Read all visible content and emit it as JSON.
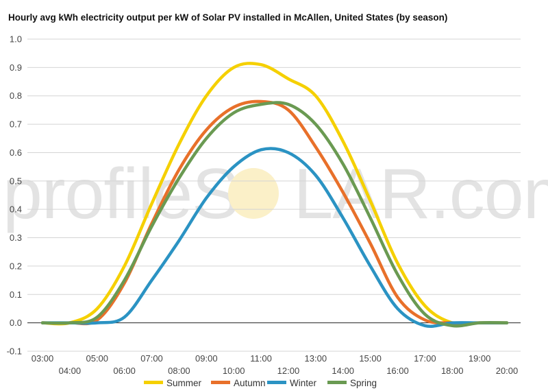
{
  "watermark": {
    "pre": "profileS",
    "post": "LAR.com"
  },
  "chart_data": {
    "type": "line",
    "title": "Hourly avg kWh electricity output per kW of Solar PV installed in McAllen, United States (by season)",
    "xlabel": "",
    "ylabel": "",
    "ylim": [
      -0.1,
      1.0
    ],
    "yticks": [
      "-0.1",
      "0.0",
      "0.1",
      "0.2",
      "0.3",
      "0.4",
      "0.5",
      "0.6",
      "0.7",
      "0.8",
      "0.9",
      "1.0"
    ],
    "x": [
      "03:00",
      "04:00",
      "05:00",
      "06:00",
      "07:00",
      "08:00",
      "09:00",
      "10:00",
      "11:00",
      "12:00",
      "13:00",
      "14:00",
      "15:00",
      "16:00",
      "17:00",
      "18:00",
      "19:00",
      "20:00"
    ],
    "grid": true,
    "legend": "bottom",
    "series": [
      {
        "name": "Summer",
        "color": "#f5d000",
        "values": [
          0.0,
          0.0,
          0.05,
          0.2,
          0.42,
          0.63,
          0.8,
          0.9,
          0.91,
          0.86,
          0.8,
          0.64,
          0.43,
          0.21,
          0.06,
          0.0,
          0.0,
          0.0
        ]
      },
      {
        "name": "Autumn",
        "color": "#e8702a",
        "values": [
          0.0,
          0.0,
          0.01,
          0.14,
          0.35,
          0.54,
          0.68,
          0.76,
          0.78,
          0.75,
          0.62,
          0.46,
          0.28,
          0.09,
          0.01,
          0.0,
          0.0,
          0.0
        ]
      },
      {
        "name": "Winter",
        "color": "#2b93c3",
        "values": [
          0.0,
          0.0,
          0.0,
          0.02,
          0.15,
          0.29,
          0.44,
          0.55,
          0.61,
          0.6,
          0.52,
          0.37,
          0.2,
          0.05,
          -0.01,
          0.0,
          0.0,
          0.0
        ]
      },
      {
        "name": "Spring",
        "color": "#6a9a52",
        "values": [
          0.0,
          0.0,
          0.02,
          0.15,
          0.34,
          0.51,
          0.65,
          0.74,
          0.77,
          0.77,
          0.7,
          0.56,
          0.37,
          0.17,
          0.03,
          -0.01,
          0.0,
          0.0
        ]
      }
    ]
  }
}
